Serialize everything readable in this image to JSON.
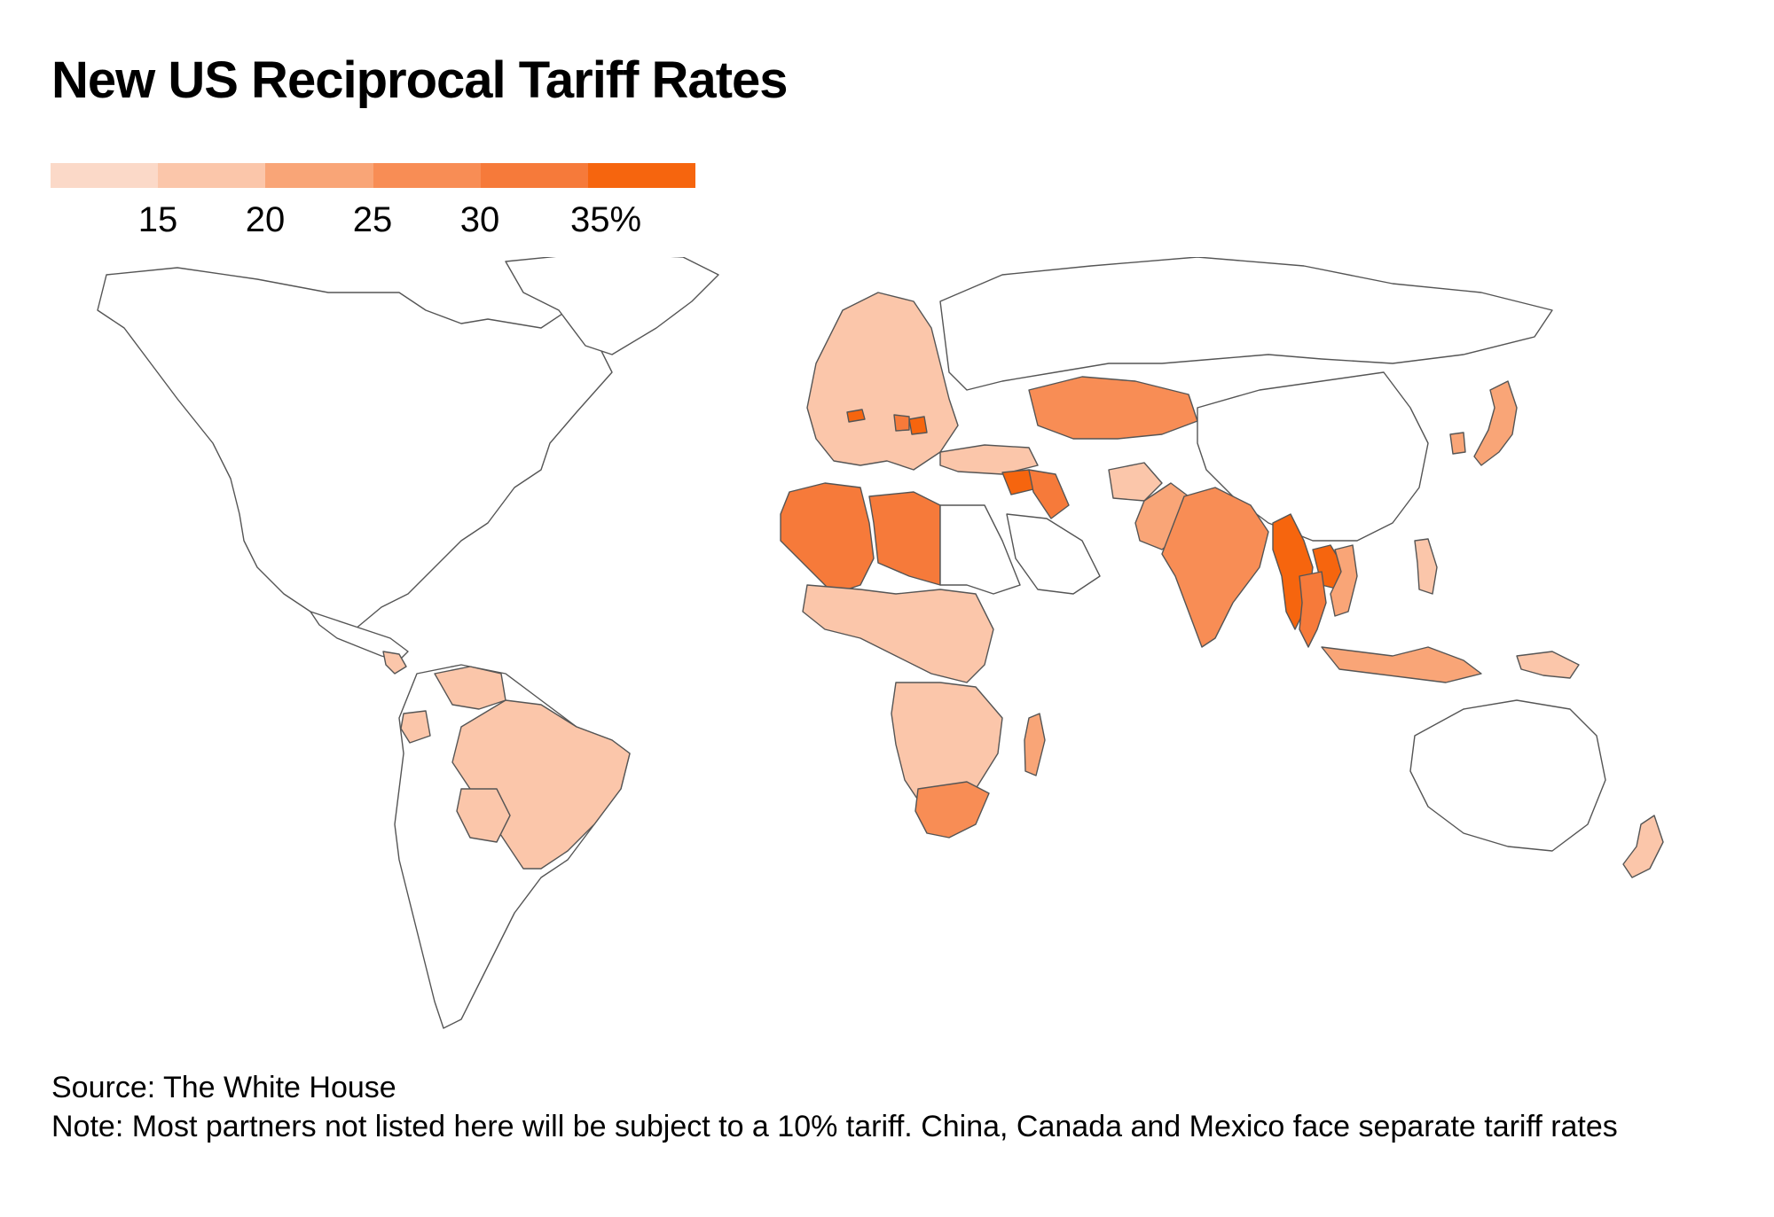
{
  "title": "New US Reciprocal Tariff Rates",
  "legend": {
    "colors": [
      "#fbd9c8",
      "#fbc6aa",
      "#f9a577",
      "#f88d55",
      "#f67a3a",
      "#f6650e"
    ],
    "ticks": [
      "15",
      "20",
      "25",
      "30",
      "35%"
    ]
  },
  "map": {
    "no_data_color": "#ffffff",
    "border_color": "#555555",
    "regions": [
      {
        "name": "north-america",
        "rate_bucket": 0
      },
      {
        "name": "greenland",
        "rate_bucket": 0
      },
      {
        "name": "central-america",
        "rate_bucket": 0
      },
      {
        "name": "nicaragua",
        "rate_bucket": 1
      },
      {
        "name": "south-america",
        "rate_bucket": 0
      },
      {
        "name": "brazil",
        "rate_bucket": 1
      },
      {
        "name": "venezuela",
        "rate_bucket": 1
      },
      {
        "name": "bolivia",
        "rate_bucket": 1
      },
      {
        "name": "ecuador",
        "rate_bucket": 1
      },
      {
        "name": "europe",
        "rate_bucket": 1
      },
      {
        "name": "switzerland",
        "rate_bucket": 5
      },
      {
        "name": "serbia",
        "rate_bucket": 5
      },
      {
        "name": "bosnia",
        "rate_bucket": 4
      },
      {
        "name": "algeria",
        "rate_bucket": 4
      },
      {
        "name": "libya",
        "rate_bucket": 4
      },
      {
        "name": "syria",
        "rate_bucket": 5
      },
      {
        "name": "iraq",
        "rate_bucket": 4
      },
      {
        "name": "turkey",
        "rate_bucket": 1
      },
      {
        "name": "kazakhstan",
        "rate_bucket": 3
      },
      {
        "name": "india",
        "rate_bucket": 3
      },
      {
        "name": "pakistan",
        "rate_bucket": 2
      },
      {
        "name": "afghanistan",
        "rate_bucket": 1
      },
      {
        "name": "myanmar",
        "rate_bucket": 5
      },
      {
        "name": "thailand",
        "rate_bucket": 4
      },
      {
        "name": "laos",
        "rate_bucket": 5
      },
      {
        "name": "vietnam",
        "rate_bucket": 2
      },
      {
        "name": "indonesia",
        "rate_bucket": 2
      },
      {
        "name": "philippines",
        "rate_bucket": 1
      },
      {
        "name": "japan",
        "rate_bucket": 2
      },
      {
        "name": "south-korea",
        "rate_bucket": 2
      },
      {
        "name": "china",
        "rate_bucket": 0
      },
      {
        "name": "russia",
        "rate_bucket": 0
      },
      {
        "name": "central-africa",
        "rate_bucket": 1
      },
      {
        "name": "southern-africa",
        "rate_bucket": 1
      },
      {
        "name": "south-africa",
        "rate_bucket": 3
      },
      {
        "name": "madagascar",
        "rate_bucket": 2
      },
      {
        "name": "papua-new-guinea",
        "rate_bucket": 1
      },
      {
        "name": "australia",
        "rate_bucket": 0
      },
      {
        "name": "new-zealand",
        "rate_bucket": 1
      },
      {
        "name": "saudi-arabia",
        "rate_bucket": 0
      },
      {
        "name": "north-africa-east",
        "rate_bucket": 0
      }
    ]
  },
  "footer": {
    "source": "Source: The White House",
    "note": "Note: Most partners not listed here will be subject to a 10% tariff. China, Canada and Mexico face separate tariff rates"
  }
}
